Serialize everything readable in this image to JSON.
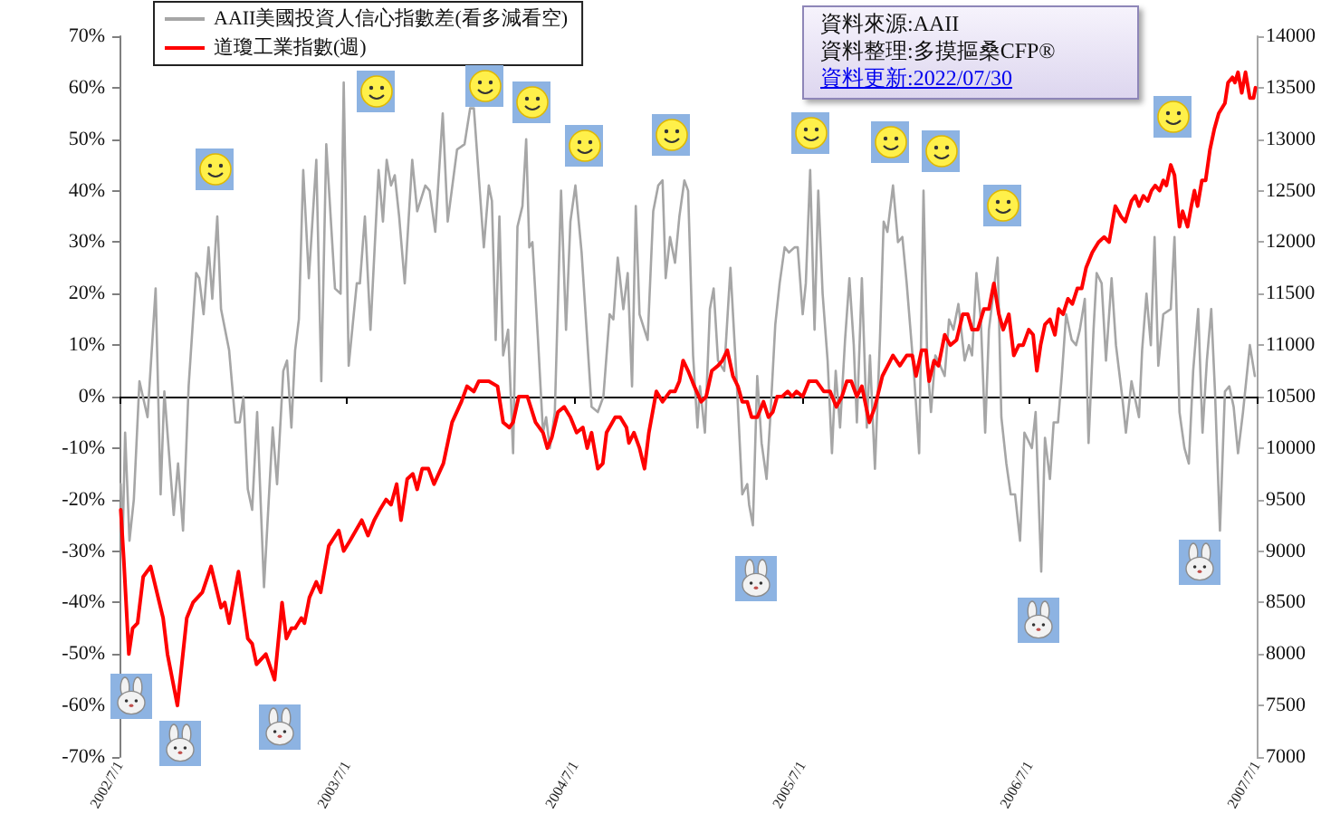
{
  "chart_data": {
    "type": "line",
    "legend": "top left",
    "marker": "none",
    "xlim": [
      "2002-07-01",
      "2007-07-01"
    ],
    "xticks": [
      {
        "value": "2002-07-01",
        "label": "2002/7/1"
      },
      {
        "value": "2003-07-01",
        "label": "2003/7/1"
      },
      {
        "value": "2004-07-01",
        "label": "2004/7/1"
      },
      {
        "value": "2005-07-01",
        "label": "2005/7/1"
      },
      {
        "value": "2006-07-01",
        "label": "2006/7/1"
      },
      {
        "value": "2007-07-01",
        "label": "2007/7/1"
      }
    ],
    "ylim": [
      -70,
      70
    ],
    "yticks": [
      {
        "value": -70,
        "label": "-70%"
      },
      {
        "value": -60,
        "label": "-60%"
      },
      {
        "value": -50,
        "label": "-50%"
      },
      {
        "value": -40,
        "label": "-40%"
      },
      {
        "value": -30,
        "label": "-30%"
      },
      {
        "value": -20,
        "label": "-20%"
      },
      {
        "value": -10,
        "label": "-10%"
      },
      {
        "value": 0,
        "label": "0%"
      },
      {
        "value": 10,
        "label": "10%"
      },
      {
        "value": 20,
        "label": "20%"
      },
      {
        "value": 30,
        "label": "30%"
      },
      {
        "value": 40,
        "label": "40%"
      },
      {
        "value": 50,
        "label": "50%"
      },
      {
        "value": 60,
        "label": "60%"
      },
      {
        "value": 70,
        "label": "70%"
      }
    ],
    "y2lim": [
      7000,
      14000
    ],
    "y2ticks": [
      7000,
      7500,
      8000,
      8500,
      9000,
      9500,
      10000,
      10500,
      11000,
      11500,
      12000,
      12500,
      13000,
      13500,
      14000
    ],
    "annotations": [
      "資料來源:AAII",
      "資料整理:多摸摳桑CFP®",
      "資料更新:2022/07/30"
    ],
    "series": [
      {
        "name": "AAII美國投資人信心指數差(看多減看空)",
        "color": "#a6a6a6",
        "x": [
          "2002-07-03",
          "2002-07-06",
          "2002-07-10",
          "2002-07-17",
          "2002-07-24",
          "2002-08-02",
          "2002-08-15",
          "2002-08-28",
          "2002-09-05",
          "2002-09-11",
          "2002-09-26",
          "2002-10-03",
          "2002-10-11",
          "2002-10-20",
          "2002-11-01",
          "2002-11-06",
          "2002-11-13",
          "2002-11-21",
          "2002-11-27",
          "2002-12-05",
          "2002-12-11",
          "2002-12-24",
          "2003-01-03",
          "2003-01-10",
          "2003-01-16",
          "2003-01-23",
          "2003-01-30",
          "2003-02-07",
          "2003-02-18",
          "2003-03-04",
          "2003-03-11",
          "2003-03-21",
          "2003-03-27",
          "2003-04-03",
          "2003-04-09",
          "2003-04-15",
          "2003-04-22",
          "2003-05-01",
          "2003-05-13",
          "2003-05-21",
          "2003-05-29",
          "2003-06-12",
          "2003-06-21",
          "2003-06-26",
          "2003-07-04",
          "2003-07-17",
          "2003-07-22",
          "2003-07-30",
          "2003-08-08",
          "2003-08-21",
          "2003-08-28",
          "2003-09-03",
          "2003-09-10",
          "2003-09-16",
          "2003-09-23",
          "2003-10-02",
          "2003-10-14",
          "2003-10-22",
          "2003-11-04",
          "2003-11-11",
          "2003-11-20",
          "2003-12-02",
          "2003-12-10",
          "2003-12-25",
          "2004-01-06",
          "2004-01-15",
          "2004-01-21",
          "2004-02-06",
          "2004-02-14",
          "2004-02-19",
          "2004-02-25",
          "2004-03-02",
          "2004-03-08",
          "2004-03-16",
          "2004-03-24",
          "2004-03-31",
          "2004-04-08",
          "2004-04-14",
          "2004-04-19",
          "2004-04-24",
          "2004-05-03",
          "2004-05-11",
          "2004-05-16",
          "2004-05-22",
          "2004-05-30",
          "2004-06-09",
          "2004-06-17",
          "2004-06-24",
          "2004-07-02",
          "2004-07-12",
          "2004-07-20",
          "2004-07-28",
          "2004-08-07",
          "2004-08-16",
          "2004-08-26",
          "2004-09-01",
          "2004-09-08",
          "2004-09-17",
          "2004-09-24",
          "2004-10-01",
          "2004-10-07",
          "2004-10-13",
          "2004-10-26",
          "2004-11-04",
          "2004-11-12",
          "2004-11-19",
          "2004-11-24",
          "2004-12-01",
          "2004-12-09",
          "2004-12-16",
          "2004-12-24",
          "2004-12-30",
          "2005-01-07",
          "2005-01-14",
          "2005-01-18",
          "2005-01-26",
          "2005-02-03",
          "2005-02-09",
          "2005-02-16",
          "2005-02-26",
          "2005-03-08",
          "2005-03-18",
          "2005-03-27",
          "2005-04-04",
          "2005-04-07",
          "2005-04-13",
          "2005-04-20",
          "2005-04-27",
          "2005-05-05",
          "2005-05-11",
          "2005-05-19",
          "2005-05-26",
          "2005-06-03",
          "2005-06-10",
          "2005-06-19",
          "2005-06-24",
          "2005-07-02",
          "2005-07-07",
          "2005-07-14",
          "2005-07-21",
          "2005-07-27",
          "2005-08-03",
          "2005-08-11",
          "2005-08-18",
          "2005-08-24",
          "2005-08-31",
          "2005-09-08",
          "2005-09-15",
          "2005-09-22",
          "2005-09-27",
          "2005-10-05",
          "2005-10-13",
          "2005-10-18",
          "2005-10-26",
          "2005-11-03",
          "2005-11-09",
          "2005-11-15",
          "2005-11-24",
          "2005-12-02",
          "2005-12-09",
          "2005-12-16",
          "2005-12-28",
          "2006-01-05",
          "2006-01-12",
          "2006-01-18",
          "2006-01-24",
          "2006-01-31",
          "2006-02-08",
          "2006-02-15",
          "2006-02-22",
          "2006-03-01",
          "2006-03-09",
          "2006-03-19",
          "2006-03-26",
          "2006-03-31",
          "2006-04-07",
          "2006-04-14",
          "2006-04-21",
          "2006-04-27",
          "2006-05-03",
          "2006-05-11",
          "2006-05-17",
          "2006-05-25",
          "2006-06-01",
          "2006-06-08",
          "2006-06-16",
          "2006-06-23",
          "2006-07-05",
          "2006-07-11",
          "2006-07-20",
          "2006-07-26",
          "2006-08-03",
          "2006-08-09",
          "2006-08-16",
          "2006-08-22",
          "2006-08-29",
          "2006-09-07",
          "2006-09-14",
          "2006-09-20",
          "2006-09-28",
          "2006-10-04",
          "2006-10-12",
          "2006-10-17",
          "2006-10-25",
          "2006-11-01",
          "2006-11-10",
          "2006-11-17",
          "2006-11-27",
          "2006-12-03",
          "2006-12-12",
          "2006-12-17",
          "2006-12-24",
          "2006-12-29",
          "2007-01-05",
          "2007-01-12",
          "2007-01-18",
          "2007-01-24",
          "2007-02-01",
          "2007-02-13",
          "2007-02-19",
          "2007-02-27",
          "2007-03-07",
          "2007-03-14",
          "2007-03-21",
          "2007-03-29",
          "2007-04-05",
          "2007-04-12",
          "2007-04-19",
          "2007-04-25",
          "2007-05-03",
          "2007-05-11",
          "2007-05-18",
          "2007-05-25",
          "2007-06-01",
          "2007-06-09",
          "2007-06-20",
          "2007-06-28"
        ],
        "values": [
          -17,
          -28,
          -7,
          -28,
          -20,
          3,
          -4,
          21,
          -19,
          1,
          -23,
          -13,
          -26,
          2,
          24,
          23,
          16,
          29,
          19,
          35,
          17,
          9,
          -5,
          -5,
          0,
          -18,
          -22,
          -3,
          -37,
          -6,
          -17,
          5,
          7,
          -6,
          9,
          15,
          44,
          23,
          46,
          3,
          49,
          21,
          20,
          61,
          6,
          22,
          22,
          35,
          13,
          44,
          34,
          46,
          41,
          43,
          35,
          22,
          46,
          36,
          41,
          40,
          32,
          55,
          34,
          48,
          49,
          56,
          56,
          29,
          41,
          38,
          11,
          35,
          8,
          13,
          -11,
          33,
          37,
          50,
          29,
          30,
          11,
          -7,
          -4,
          -10,
          -3,
          40,
          13,
          34,
          41,
          28,
          13,
          -2,
          -3,
          0,
          16,
          15,
          27,
          17,
          24,
          2,
          37,
          16,
          11,
          36,
          41,
          42,
          23,
          31,
          26,
          35,
          42,
          40,
          8,
          -6,
          2,
          -7,
          17,
          21,
          7,
          5,
          25,
          3,
          -19,
          -17,
          -21,
          -25,
          4,
          -9,
          -16,
          -4,
          14,
          22,
          29,
          28,
          29,
          29,
          16,
          22,
          44,
          13,
          40,
          20,
          7,
          -11,
          5,
          -6,
          11,
          23,
          10,
          -5,
          23,
          -6,
          8,
          -14,
          11,
          34,
          32,
          41,
          30,
          31,
          22,
          4,
          -11,
          40,
          7,
          -3,
          8,
          6,
          4,
          15,
          13,
          18,
          7,
          10,
          8,
          24,
          15,
          -7,
          13,
          19,
          27,
          -4,
          -13,
          -19,
          -19,
          -28,
          -7,
          -10,
          -3,
          -34,
          -8,
          -16,
          -5,
          -5,
          4,
          16,
          11,
          10,
          13,
          19,
          -9,
          13,
          24,
          22,
          7,
          23,
          10,
          0,
          -7,
          3,
          0,
          -4,
          9,
          20,
          10,
          31,
          6,
          16,
          17,
          31,
          -3,
          -10,
          -13,
          5,
          17,
          -7,
          7,
          17,
          1,
          -26,
          1,
          2,
          -2,
          -11,
          -3,
          10,
          4
        ]
      },
      {
        "name": "道瓊工業指數(週)",
        "color": "#ff0000",
        "axis": "y2",
        "x": [
          "2002-07-03",
          "2002-07-08",
          "2002-07-16",
          "2002-07-22",
          "2002-07-30",
          "2002-08-08",
          "2002-08-20",
          "2002-09-01",
          "2002-09-09",
          "2002-09-16",
          "2002-10-02",
          "2002-10-17",
          "2002-10-27",
          "2002-11-11",
          "2002-11-25",
          "2002-12-11",
          "2002-12-17",
          "2002-12-24",
          "2003-01-08",
          "2003-01-23",
          "2003-01-30",
          "2003-02-06",
          "2003-02-21",
          "2003-03-07",
          "2003-03-19",
          "2003-03-26",
          "2003-04-03",
          "2003-04-09",
          "2003-04-19",
          "2003-04-24",
          "2003-05-02",
          "2003-05-13",
          "2003-05-20",
          "2003-06-02",
          "2003-06-18",
          "2003-06-26",
          "2003-07-06",
          "2003-07-25",
          "2003-08-04",
          "2003-08-14",
          "2003-08-23",
          "2003-09-02",
          "2003-09-10",
          "2003-09-19",
          "2003-09-26",
          "2003-10-06",
          "2003-10-15",
          "2003-10-22",
          "2003-10-30",
          "2003-11-09",
          "2003-11-18",
          "2003-12-03",
          "2003-12-17",
          "2004-01-01",
          "2004-01-10",
          "2004-01-21",
          "2004-01-29",
          "2004-02-14",
          "2004-02-28",
          "2004-03-08",
          "2004-03-18",
          "2004-03-24",
          "2004-04-02",
          "2004-04-16",
          "2004-04-29",
          "2004-05-11",
          "2004-05-18",
          "2004-05-25",
          "2004-06-04",
          "2004-06-14",
          "2004-06-24",
          "2004-07-04",
          "2004-07-14",
          "2004-07-21",
          "2004-07-28",
          "2004-08-07",
          "2004-08-15",
          "2004-08-21",
          "2004-09-04",
          "2004-09-12",
          "2004-09-22",
          "2004-09-26",
          "2004-10-04",
          "2004-10-13",
          "2004-10-21",
          "2004-10-28",
          "2004-11-09",
          "2004-11-19",
          "2004-12-01",
          "2004-12-09",
          "2004-12-16",
          "2004-12-22",
          "2004-12-30",
          "2005-01-09",
          "2005-01-20",
          "2005-01-28",
          "2005-02-06",
          "2005-02-16",
          "2005-02-23",
          "2005-03-03",
          "2005-03-12",
          "2005-03-20",
          "2005-03-27",
          "2005-04-04",
          "2005-04-11",
          "2005-04-20",
          "2005-04-30",
          "2005-05-08",
          "2005-05-15",
          "2005-05-22",
          "2005-05-30",
          "2005-06-08",
          "2005-06-15",
          "2005-06-22",
          "2005-07-02",
          "2005-07-12",
          "2005-07-24",
          "2005-08-05",
          "2005-08-15",
          "2005-08-25",
          "2005-09-03",
          "2005-09-11",
          "2005-09-18",
          "2005-09-27",
          "2005-10-05",
          "2005-10-17",
          "2005-10-26",
          "2005-11-07",
          "2005-11-24",
          "2005-12-05",
          "2005-12-16",
          "2005-12-25",
          "2005-12-31",
          "2006-01-09",
          "2006-01-16",
          "2006-01-21",
          "2006-01-29",
          "2006-02-05",
          "2006-02-15",
          "2006-02-24",
          "2006-03-06",
          "2006-03-16",
          "2006-03-24",
          "2006-03-31",
          "2006-04-09",
          "2006-04-19",
          "2006-04-27",
          "2006-05-05",
          "2006-05-13",
          "2006-05-20",
          "2006-05-29",
          "2006-06-06",
          "2006-06-14",
          "2006-06-21",
          "2006-06-30",
          "2006-07-07",
          "2006-07-13",
          "2006-07-19",
          "2006-07-26",
          "2006-08-03",
          "2006-08-11",
          "2006-08-17",
          "2006-08-24",
          "2006-09-01",
          "2006-09-08",
          "2006-09-16",
          "2006-09-23",
          "2006-09-30",
          "2006-10-10",
          "2006-10-20",
          "2006-10-29",
          "2006-11-06",
          "2006-11-16",
          "2006-11-25",
          "2006-12-02",
          "2006-12-12",
          "2006-12-18",
          "2006-12-24",
          "2006-12-31",
          "2007-01-07",
          "2007-01-13",
          "2007-01-19",
          "2007-01-26",
          "2007-02-01",
          "2007-02-06",
          "2007-02-13",
          "2007-02-19",
          "2007-02-27",
          "2007-03-04",
          "2007-03-12",
          "2007-03-18",
          "2007-03-23",
          "2007-03-28",
          "2007-04-04",
          "2007-04-10",
          "2007-04-17",
          "2007-04-24",
          "2007-05-01",
          "2007-05-11",
          "2007-05-16",
          "2007-05-23",
          "2007-05-27",
          "2007-06-01",
          "2007-06-07",
          "2007-06-13",
          "2007-06-20",
          "2007-06-26",
          "2007-06-29"
        ],
        "values": [
          9400,
          8900,
          8000,
          8250,
          8300,
          8750,
          8850,
          8550,
          8350,
          8000,
          7500,
          8350,
          8500,
          8600,
          8850,
          8450,
          8500,
          8300,
          8800,
          8150,
          8100,
          7900,
          8000,
          7750,
          8500,
          8150,
          8250,
          8250,
          8350,
          8300,
          8550,
          8700,
          8600,
          9050,
          9200,
          9000,
          9100,
          9300,
          9150,
          9300,
          9400,
          9500,
          9450,
          9650,
          9300,
          9700,
          9750,
          9600,
          9800,
          9800,
          9650,
          9850,
          10250,
          10450,
          10600,
          10550,
          10650,
          10650,
          10600,
          10250,
          10200,
          10250,
          10500,
          10500,
          10250,
          10150,
          10000,
          10100,
          10350,
          10400,
          10300,
          10150,
          10200,
          10000,
          10150,
          9800,
          9850,
          10150,
          10300,
          10300,
          10200,
          10050,
          10150,
          10000,
          9800,
          10150,
          10550,
          10450,
          10550,
          10550,
          10650,
          10850,
          10750,
          10600,
          10450,
          10500,
          10750,
          10800,
          10850,
          10950,
          10700,
          10600,
          10450,
          10450,
          10300,
          10300,
          10450,
          10300,
          10350,
          10500,
          10500,
          10550,
          10500,
          10550,
          10500,
          10650,
          10650,
          10550,
          10550,
          10400,
          10500,
          10650,
          10650,
          10500,
          10600,
          10250,
          10400,
          10700,
          10900,
          10800,
          10900,
          10900,
          10700,
          10950,
          10950,
          10650,
          10850,
          10800,
          11100,
          11000,
          11050,
          11300,
          11300,
          11150,
          11150,
          11350,
          11350,
          11600,
          11300,
          11150,
          11300,
          10900,
          11000,
          11000,
          11150,
          11100,
          10750,
          11000,
          11200,
          11250,
          11100,
          11350,
          11300,
          11450,
          11400,
          11550,
          11550,
          11750,
          11900,
          12000,
          12050,
          12000,
          12350,
          12250,
          12200,
          12400,
          12450,
          12350,
          12450,
          12400,
          12500,
          12550,
          12500,
          12600,
          12550,
          12750,
          12650,
          12150,
          12300,
          12150,
          12350,
          12500,
          12350,
          12600,
          12600,
          12900,
          13100,
          13250,
          13350,
          13550,
          13600,
          13550,
          13650,
          13450,
          13650,
          13400,
          13400,
          13500
        ]
      }
    ]
  }
}
